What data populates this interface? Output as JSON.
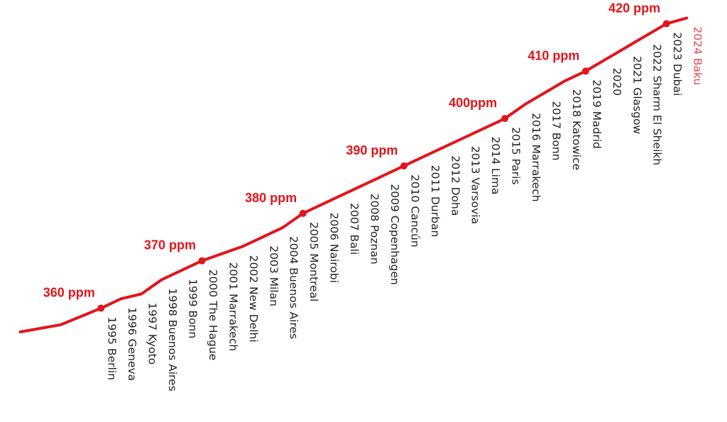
{
  "chart_data": {
    "type": "line",
    "color": "#e3141b",
    "label_color": "#222222",
    "highlight": {
      "index": 31,
      "color": "#e8474b"
    },
    "xlim": [
      1990,
      2026
    ],
    "ylim": [
      336,
      425
    ],
    "x": [
      1991,
      1993,
      1995,
      1996,
      1997,
      1998,
      1999,
      2000,
      2001,
      2002,
      2003,
      2004,
      2005,
      2006,
      2007,
      2008,
      2009,
      2010,
      2011,
      2012,
      2013,
      2014,
      2015,
      2016,
      2017,
      2018,
      2019,
      2020,
      2021,
      2022,
      2023,
      2024
    ],
    "values": [
      355,
      356.5,
      360,
      362,
      363,
      366,
      368,
      370,
      371.5,
      373,
      375,
      377,
      380,
      382,
      384,
      386,
      388,
      390,
      392,
      394,
      396,
      398,
      400,
      403,
      405.5,
      408,
      410,
      412.5,
      415,
      417.5,
      420,
      421.2
    ],
    "labels": [
      null,
      null,
      "1995 Berlin",
      "1996 Geneva",
      "1997 Kyoto",
      "1998 Buenos Aires",
      "1999 Bonn",
      "2000 The Hague",
      "2001 Marrakech",
      "2002 New Delhi",
      "2003 Milan",
      "2004 Buenos Aires",
      "2005 Montreal",
      "2006 Nairobi",
      "2007 Bali",
      "2008 Poznan",
      "2009 Copenhagen",
      "2010 Cancún",
      "2011 Durban",
      "2012 Doha",
      "2013 Varsovia",
      "2014 Lima",
      "2015 Paris",
      "2016 Marrakech",
      "2017 Bonn",
      "2018 Katowice",
      "2019 Madrid",
      "2020",
      "2021 Glasgow",
      "2022 Sharm El Sheikh",
      "2023 Dubai",
      "2024 Baku"
    ],
    "annotations": [
      {
        "text": "360 ppm",
        "x": 1995,
        "y": 360
      },
      {
        "text": "370 ppm",
        "x": 2000,
        "y": 370
      },
      {
        "text": "380 ppm",
        "x": 2005,
        "y": 380
      },
      {
        "text": "390 ppm",
        "x": 2010,
        "y": 390
      },
      {
        "text": "400ppm",
        "x": 2015,
        "y": 400
      },
      {
        "text": "410 ppm",
        "x": 2019,
        "y": 410
      },
      {
        "text": "420 ppm",
        "x": 2023,
        "y": 420
      }
    ]
  }
}
